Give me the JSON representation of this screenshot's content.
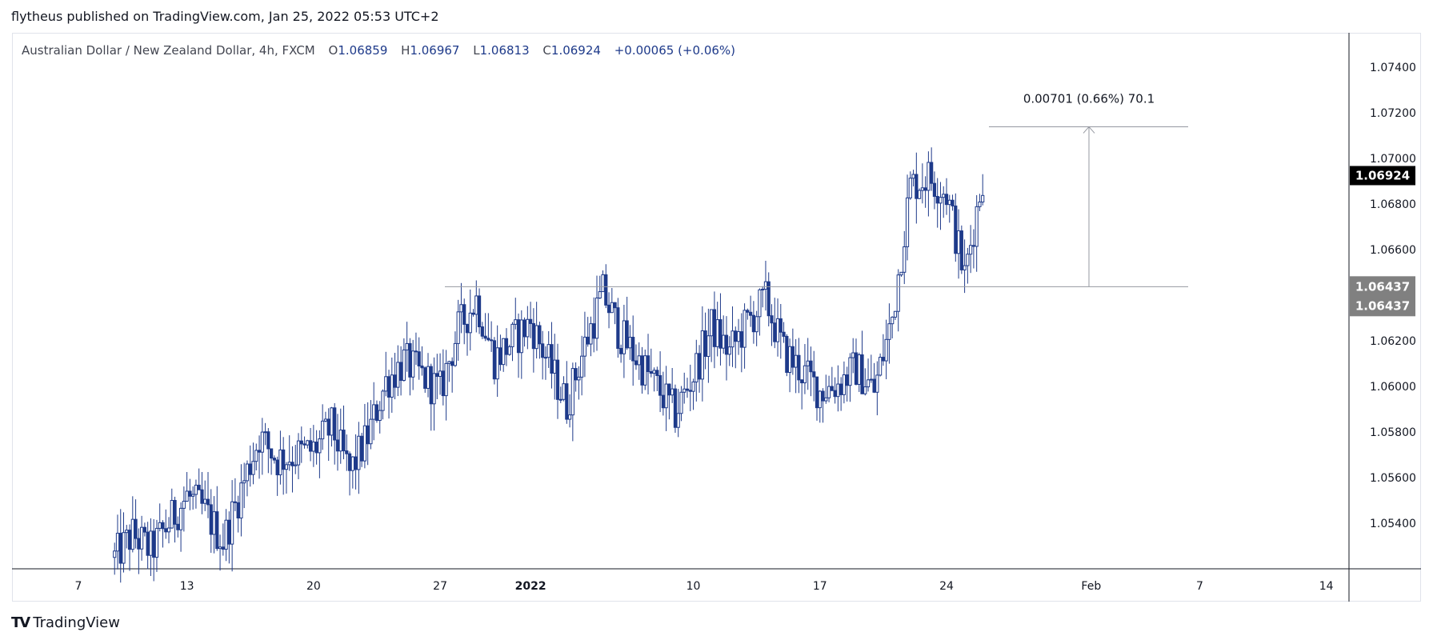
{
  "header": {
    "published": "flytheus published on TradingView.com, Jan 25, 2022 05:53 UTC+2"
  },
  "legend": {
    "symbol": "Australian Dollar / New Zealand Dollar, 4h, FXCM",
    "o_label": "O",
    "o": "1.06859",
    "h_label": "H",
    "h": "1.06967",
    "l_label": "L",
    "l": "1.06813",
    "c_label": "C",
    "c": "1.06924",
    "change": "+0.00065 (+0.06%)"
  },
  "footer": {
    "brand": "TradingView",
    "logo": "TV"
  },
  "colors": {
    "candle": "#1e3a8a",
    "line": "#9598a1",
    "axis": "#131722"
  },
  "chart_data": {
    "type": "candlestick",
    "title": "Australian Dollar / New Zealand Dollar, 4h, FXCM",
    "ylim": [
      1.052,
      1.0755
    ],
    "y_ticks": [
      "1.07400",
      "1.07200",
      "1.07000",
      "1.06800",
      "1.06600",
      "1.06200",
      "1.06000",
      "1.05800",
      "1.05600",
      "1.05400"
    ],
    "x_ticks": [
      {
        "label": "7",
        "date": "2021-12-07"
      },
      {
        "label": "13",
        "date": "2021-12-13"
      },
      {
        "label": "20",
        "date": "2021-12-20"
      },
      {
        "label": "27",
        "date": "2021-12-27"
      },
      {
        "label": "2022",
        "date": "2022-01-01"
      },
      {
        "label": "10",
        "date": "2022-01-10"
      },
      {
        "label": "17",
        "date": "2022-01-17"
      },
      {
        "label": "24",
        "date": "2022-01-24"
      },
      {
        "label": "Feb",
        "date": "2022-02-01"
      },
      {
        "label": "7",
        "date": "2022-02-07"
      },
      {
        "label": "14",
        "date": "2022-02-14"
      }
    ],
    "last_price": "1.06924",
    "support_labels": [
      "1.06437",
      "1.06437"
    ],
    "support_level": 1.06437,
    "measure": {
      "label": "0.00701 (0.66%) 70.1",
      "from": 1.06437,
      "to": 1.07138
    },
    "price_path": [
      [
        "2021-12-09",
        1.0525
      ],
      [
        "2021-12-10",
        1.0535
      ],
      [
        "2021-12-11",
        1.0528
      ],
      [
        "2021-12-13",
        1.0552
      ],
      [
        "2021-12-14",
        1.0545
      ],
      [
        "2021-12-15",
        1.0532
      ],
      [
        "2021-12-16",
        1.0555
      ],
      [
        "2021-12-17",
        1.0578
      ],
      [
        "2021-12-18",
        1.0568
      ],
      [
        "2021-12-20",
        1.0572
      ],
      [
        "2021-12-21",
        1.0582
      ],
      [
        "2021-12-22",
        1.0562
      ],
      [
        "2021-12-23",
        1.0578
      ],
      [
        "2021-12-24",
        1.0602
      ],
      [
        "2021-12-25",
        1.0611
      ],
      [
        "2021-12-27",
        1.0598
      ],
      [
        "2021-12-28",
        1.0625
      ],
      [
        "2021-12-29",
        1.0638
      ],
      [
        "2021-12-30",
        1.0612
      ],
      [
        "2022-01-01",
        1.0628
      ],
      [
        "2022-01-03",
        1.0592
      ],
      [
        "2022-01-04",
        1.0618
      ],
      [
        "2022-01-05",
        1.0641
      ],
      [
        "2022-01-06",
        1.0622
      ],
      [
        "2022-01-07",
        1.0611
      ],
      [
        "2022-01-09",
        1.0588
      ],
      [
        "2022-01-10",
        1.0605
      ],
      [
        "2022-01-11",
        1.0626
      ],
      [
        "2022-01-12",
        1.0615
      ],
      [
        "2022-01-13",
        1.0628
      ],
      [
        "2022-01-14",
        1.0638
      ],
      [
        "2022-01-15",
        1.0615
      ],
      [
        "2022-01-17",
        1.0598
      ],
      [
        "2022-01-18",
        1.0601
      ],
      [
        "2022-01-19",
        1.0608
      ],
      [
        "2022-01-20",
        1.0598
      ],
      [
        "2022-01-21",
        1.063
      ],
      [
        "2022-01-22",
        1.0688
      ],
      [
        "2022-01-23",
        1.0692
      ],
      [
        "2022-01-24",
        1.0685
      ],
      [
        "2022-01-25",
        1.0648
      ],
      [
        "2022-01-26",
        1.0692
      ]
    ]
  }
}
